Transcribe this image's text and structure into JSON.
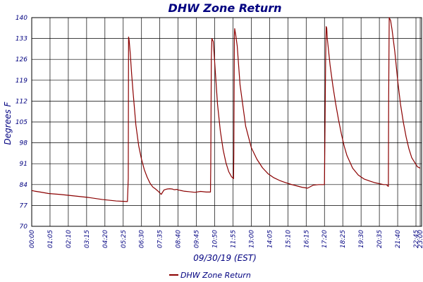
{
  "chart_data": {
    "type": "line",
    "title": "DHW Zone Return",
    "xlabel": "09/30/19 (EST)",
    "ylabel": "Degrees F",
    "ylim": [
      70,
      140
    ],
    "y_ticks": [
      70,
      77,
      84,
      91,
      98,
      105,
      112,
      119,
      126,
      133,
      140
    ],
    "x_tick_labels": [
      "00:00",
      "01:05",
      "02:10",
      "03:15",
      "04:20",
      "05:25",
      "06:30",
      "07:35",
      "08:40",
      "09:45",
      "10:50",
      "11:55",
      "13:00",
      "14:05",
      "15:10",
      "16:15",
      "17:20",
      "18:25",
      "19:30",
      "20:35",
      "21:40",
      "22:45",
      "23:00"
    ],
    "x_tick_minutes": [
      0,
      65,
      130,
      195,
      260,
      325,
      390,
      455,
      520,
      585,
      650,
      715,
      780,
      845,
      910,
      975,
      1040,
      1105,
      1170,
      1235,
      1300,
      1365,
      1380
    ],
    "xlim_minutes": [
      0,
      1385
    ],
    "grid": true,
    "legend_position": "bottom-center",
    "series": [
      {
        "name": "DHW Zone Return",
        "color": "#8B0000",
        "x_minutes": [
          0,
          10,
          30,
          60,
          100,
          150,
          200,
          250,
          300,
          340,
          343,
          344,
          346,
          350,
          355,
          360,
          370,
          380,
          390,
          400,
          410,
          420,
          430,
          440,
          450,
          460,
          470,
          480,
          490,
          500,
          505,
          510,
          515,
          520,
          525,
          530,
          540,
          560,
          580,
          600,
          620,
          635,
          636,
          638,
          640,
          645,
          650,
          655,
          660,
          670,
          680,
          690,
          700,
          710,
          717,
          718,
          720,
          721,
          725,
          730,
          740,
          760,
          780,
          800,
          820,
          840,
          860,
          880,
          900,
          920,
          940,
          960,
          980,
          990,
          1000,
          1020,
          1040,
          1044,
          1046,
          1048,
          1050,
          1060,
          1070,
          1080,
          1090,
          1100,
          1110,
          1120,
          1140,
          1160,
          1180,
          1200,
          1220,
          1250,
          1260,
          1264,
          1267,
          1268,
          1270,
          1275,
          1280,
          1290,
          1300,
          1310,
          1320,
          1330,
          1340,
          1350,
          1360,
          1370,
          1380
        ],
        "values": [
          82,
          81.8,
          81.5,
          81.0,
          80.7,
          80.2,
          79.7,
          79.0,
          78.5,
          78.3,
          86,
          133.5,
          132.5,
          128,
          121,
          115,
          104,
          97,
          92.5,
          89,
          86.5,
          84.5,
          83.2,
          82.5,
          81.7,
          80.7,
          82.2,
          82.5,
          82.6,
          82.5,
          82.3,
          82.3,
          82.4,
          82.2,
          82.1,
          82.0,
          81.8,
          81.6,
          81.4,
          81.7,
          81.5,
          81.5,
          90,
          126,
          133,
          132,
          125,
          118,
          111,
          102,
          95.7,
          91.3,
          88.3,
          86.6,
          86.0,
          94,
          134,
          136.3,
          134,
          130.5,
          117.5,
          103.6,
          96.4,
          92.5,
          89.6,
          87.6,
          86.3,
          85.4,
          84.7,
          84.1,
          83.6,
          83.1,
          82.8,
          83.3,
          83.8,
          84.0,
          84.0,
          125,
          137,
          136.5,
          133,
          124,
          117,
          111,
          105.7,
          101,
          96.9,
          93.7,
          89.5,
          87.2,
          85.9,
          85.2,
          84.6,
          84.0,
          84.0,
          83.6,
          83.4,
          112,
          140,
          139,
          136,
          128.5,
          119,
          111,
          105,
          100,
          96,
          93,
          91.5,
          90,
          89.5
        ]
      }
    ]
  }
}
